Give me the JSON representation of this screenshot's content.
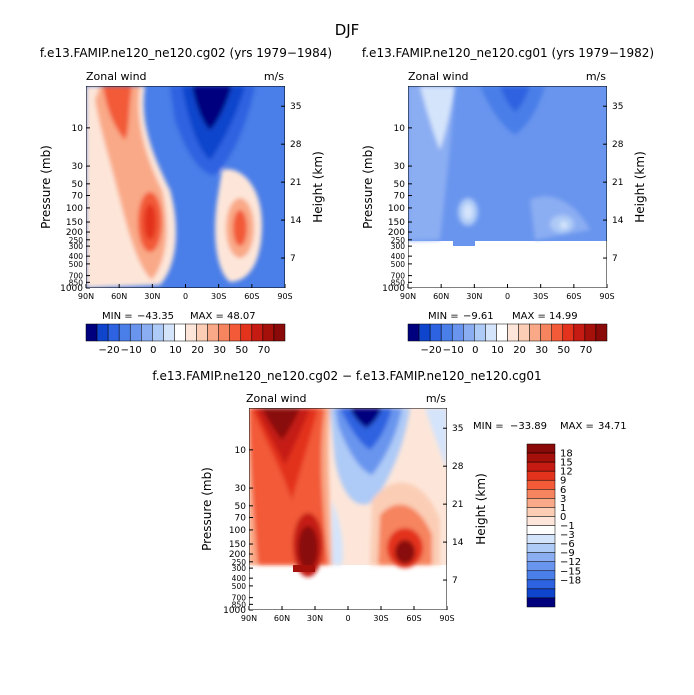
{
  "figure": {
    "title": "DJF"
  },
  "colors": {
    "blue_scale": [
      "#00007f",
      "#0022a8",
      "#0f44cc",
      "#2d62e0",
      "#4a7ee8",
      "#6995ee",
      "#8badf2",
      "#aecaf6",
      "#d4e4fb",
      "#ffffff"
    ],
    "red_scale": [
      "#fde6d9",
      "#fbcdb5",
      "#f9a987",
      "#f6845e",
      "#f25a38",
      "#e3331d",
      "#c51b12",
      "#a5100b",
      "#8a0a09"
    ]
  },
  "chart_data": [
    {
      "id": "panel1",
      "type": "contour",
      "title": "f.e13.FAMIP.ne120_ne120.cg02 (yrs 1979−1984)",
      "left_label": "Zonal wind",
      "right_label": "m/s",
      "ylabel": "Pressure (mb)",
      "ylabel_right": "Height (km)",
      "xlabel": "",
      "xlim": [
        90,
        -90
      ],
      "ylim": [
        1000,
        3
      ],
      "x_ticks": [
        {
          "v": 90,
          "label": "90N"
        },
        {
          "v": 60,
          "label": "60N"
        },
        {
          "v": 30,
          "label": "30N"
        },
        {
          "v": 0,
          "label": "0"
        },
        {
          "v": -30,
          "label": "30S"
        },
        {
          "v": -60,
          "label": "60S"
        },
        {
          "v": -90,
          "label": "90S"
        }
      ],
      "y_ticks": [
        "10",
        "30",
        "50",
        "70",
        "100",
        "150",
        "200",
        "250",
        "300",
        "400",
        "500",
        "700",
        "850",
        "1000"
      ],
      "height_ticks": [
        "35",
        "28",
        "21",
        "14",
        "7"
      ],
      "stats": {
        "min_label": "MIN =",
        "min": "−43.35",
        "max_label": "MAX =",
        "max": "48.07"
      },
      "colorbar": {
        "orientation": "horizontal",
        "labels": [
          "−20",
          "−10",
          "0",
          "10",
          "20",
          "30",
          "50",
          "70"
        ]
      }
    },
    {
      "id": "panel2",
      "type": "contour",
      "title": "f.e13.FAMIP.ne120_ne120.cg01 (yrs 1979−1982)",
      "left_label": "Zonal wind",
      "right_label": "m/s",
      "ylabel": "Pressure (mb)",
      "ylabel_right": "Height (km)",
      "xlabel": "",
      "xlim": [
        90,
        -90
      ],
      "ylim": [
        1000,
        3
      ],
      "x_ticks": [
        {
          "v": 90,
          "label": "90N"
        },
        {
          "v": 60,
          "label": "60N"
        },
        {
          "v": 30,
          "label": "30N"
        },
        {
          "v": 0,
          "label": "0"
        },
        {
          "v": -30,
          "label": "30S"
        },
        {
          "v": -60,
          "label": "60S"
        },
        {
          "v": -90,
          "label": "90S"
        }
      ],
      "y_ticks": [
        "10",
        "30",
        "50",
        "70",
        "100",
        "150",
        "200",
        "250",
        "300",
        "400",
        "500",
        "700",
        "850",
        "1000"
      ],
      "height_ticks": [
        "35",
        "28",
        "21",
        "14",
        "7"
      ],
      "stats": {
        "min_label": "MIN =",
        "min": "−9.61",
        "max_label": "MAX =",
        "max": "14.99"
      },
      "colorbar": {
        "orientation": "horizontal",
        "labels": [
          "−20",
          "−10",
          "0",
          "10",
          "20",
          "30",
          "50",
          "70"
        ]
      }
    },
    {
      "id": "panel3",
      "type": "contour",
      "title": "f.e13.FAMIP.ne120_ne120.cg02 − f.e13.FAMIP.ne120_ne120.cg01",
      "left_label": "Zonal wind",
      "right_label": "m/s",
      "ylabel": "Pressure (mb)",
      "ylabel_right": "Height (km)",
      "xlabel": "",
      "xlim": [
        90,
        -90
      ],
      "ylim": [
        1000,
        3
      ],
      "x_ticks": [
        {
          "v": 90,
          "label": "90N"
        },
        {
          "v": 60,
          "label": "60N"
        },
        {
          "v": 30,
          "label": "30N"
        },
        {
          "v": 0,
          "label": "0"
        },
        {
          "v": -30,
          "label": "30S"
        },
        {
          "v": -60,
          "label": "60S"
        },
        {
          "v": -90,
          "label": "90S"
        }
      ],
      "y_ticks": [
        "10",
        "30",
        "50",
        "70",
        "100",
        "150",
        "200",
        "250",
        "300",
        "400",
        "500",
        "700",
        "850",
        "1000"
      ],
      "height_ticks": [
        "35",
        "28",
        "21",
        "14",
        "7"
      ],
      "stats": {
        "min_label": "MIN =",
        "min": "−33.89",
        "max_label": "MAX =",
        "max": "34.71"
      },
      "colorbar": {
        "orientation": "vertical",
        "labels": [
          "18",
          "15",
          "12",
          "9",
          "6",
          "3",
          "1",
          "0",
          "−1",
          "−3",
          "−6",
          "−9",
          "−12",
          "−15",
          "−18"
        ]
      }
    }
  ]
}
